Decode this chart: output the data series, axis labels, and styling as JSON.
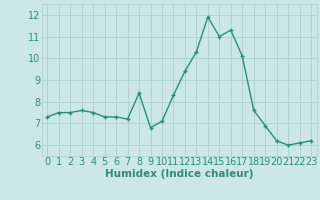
{
  "x": [
    0,
    1,
    2,
    3,
    4,
    5,
    6,
    7,
    8,
    9,
    10,
    11,
    12,
    13,
    14,
    15,
    16,
    17,
    18,
    19,
    20,
    21,
    22,
    23
  ],
  "y": [
    7.3,
    7.5,
    7.5,
    7.6,
    7.5,
    7.3,
    7.3,
    7.2,
    8.4,
    6.8,
    7.1,
    8.3,
    9.4,
    10.3,
    11.9,
    11.0,
    11.3,
    10.1,
    7.6,
    6.9,
    6.2,
    6.0,
    6.1,
    6.2
  ],
  "xlabel": "Humidex (Indice chaleur)",
  "ylim": [
    5.5,
    12.5
  ],
  "xlim": [
    -0.5,
    23.5
  ],
  "yticks": [
    6,
    7,
    8,
    9,
    10,
    11,
    12
  ],
  "xticks": [
    0,
    1,
    2,
    3,
    4,
    5,
    6,
    7,
    8,
    9,
    10,
    11,
    12,
    13,
    14,
    15,
    16,
    17,
    18,
    19,
    20,
    21,
    22,
    23
  ],
  "line_color": "#2e8b7a",
  "marker_color": "#2e8b7a",
  "bg_color": "#cce8e4",
  "grid_color": "#aacfcc",
  "xlabel_fontsize": 7.5,
  "tick_fontsize": 7.0
}
